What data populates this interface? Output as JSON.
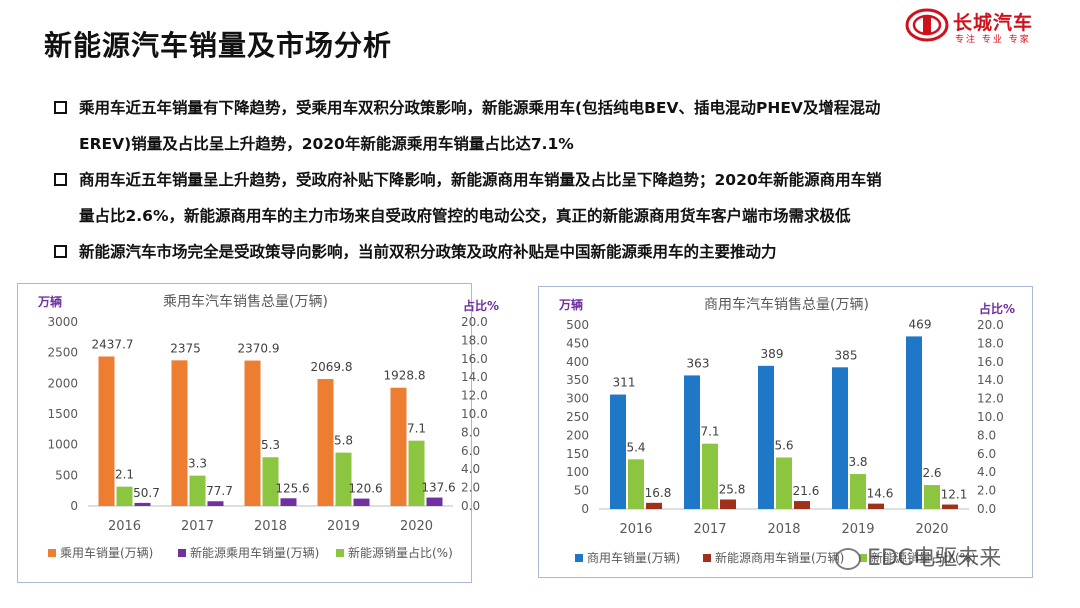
{
  "title": "新能源汽车销量及市场分析",
  "logo": {
    "name": "长城汽车",
    "slogan": "专注 专业 专家"
  },
  "bullets": [
    {
      "line1": "乘用车近五年销量有下降趋势，受乘用车双积分政策影响，新能源乘用车(包括纯电BEV、插电混动PHEV及增程混动",
      "line2": "EREV)销量及占比呈上升趋势，2020年新能源乘用车销量占比达7.1%"
    },
    {
      "line1": "商用车近五年销量呈上升趋势，受政府补贴下降影响，新能源商用车销量及占比呈下降趋势；2020年新能源商用车销",
      "line2": "量占比2.6%，新能源商用车的主力市场来自受政府管控的电动公交，真正的新能源商用货车客户端市场需求极低"
    },
    {
      "line1": "新能源汽车市场完全是受政策导向影响，当前双积分政策及政府补贴是中国新能源乘用车的主要推动力",
      "line2": ""
    }
  ],
  "watermark": "EDC电驱未来",
  "colors": {
    "orange": "#ed7d31",
    "purple": "#7030a0",
    "green": "#8cc540",
    "blue": "#1f77c8",
    "darkred": "#a0301a",
    "axis": "#595959"
  },
  "chart_data": [
    {
      "type": "bar",
      "title": "乘用车汽车销售总量(万辆)",
      "left_axis_label": "万辆",
      "right_axis_label": "占比%",
      "categories": [
        "2016",
        "2017",
        "2018",
        "2019",
        "2020"
      ],
      "ylim_left": [
        0,
        3000
      ],
      "ylim_right": [
        0,
        20
      ],
      "left_ticks": [
        "0",
        "500",
        "1000",
        "1500",
        "2000",
        "2500",
        "3000"
      ],
      "right_ticks": [
        "0.0",
        "2.0",
        "4.0",
        "6.0",
        "8.0",
        "10.0",
        "12.0",
        "14.0",
        "16.0",
        "18.0",
        "20.0"
      ],
      "series": [
        {
          "name": "乘用车销量(万辆)",
          "axis": "left",
          "color": "#ed7d31",
          "values": [
            2437.7,
            2375,
            2370.9,
            2069.8,
            1928.8
          ],
          "labels": [
            "2437.7",
            "2375",
            "2370.9",
            "2069.8",
            "1928.8"
          ]
        },
        {
          "name": "新能源乘用车销量(万辆)",
          "axis": "left",
          "color": "#7030a0",
          "values": [
            50.7,
            77.7,
            125.6,
            120.6,
            137.6
          ],
          "labels": [
            "50.7",
            "77.7",
            "125.6",
            "120.6",
            "137.6"
          ]
        },
        {
          "name": "新能源销量占比(%)",
          "axis": "right",
          "color": "#8cc540",
          "values": [
            2.1,
            3.3,
            5.3,
            5.8,
            7.1
          ],
          "labels": [
            "2.1",
            "3.3",
            "5.3",
            "5.8",
            "7.1"
          ]
        }
      ],
      "legend": "bottom"
    },
    {
      "type": "bar",
      "title": "商用车汽车销售总量(万辆)",
      "left_axis_label": "万辆",
      "right_axis_label": "占比%",
      "categories": [
        "2016",
        "2017",
        "2018",
        "2019",
        "2020"
      ],
      "ylim_left": [
        0,
        500
      ],
      "ylim_right": [
        0,
        20
      ],
      "left_ticks": [
        "0",
        "50",
        "100",
        "150",
        "200",
        "250",
        "300",
        "350",
        "400",
        "450",
        "500"
      ],
      "right_ticks": [
        "0.0",
        "2.0",
        "4.0",
        "6.0",
        "8.0",
        "10.0",
        "12.0",
        "14.0",
        "16.0",
        "18.0",
        "20.0"
      ],
      "series": [
        {
          "name": "商用车销量(万辆)",
          "axis": "left",
          "color": "#1f77c8",
          "values": [
            311,
            363,
            389,
            385,
            469
          ],
          "labels": [
            "311",
            "363",
            "389",
            "385",
            "469"
          ]
        },
        {
          "name": "新能源商用车销量(万辆)",
          "axis": "left",
          "color": "#a0301a",
          "values": [
            16.8,
            25.8,
            21.6,
            14.6,
            12.1
          ],
          "labels": [
            "16.8",
            "25.8",
            "21.6",
            "14.6",
            "12.1"
          ]
        },
        {
          "name": "新能源销量占比(%)",
          "axis": "right",
          "color": "#8cc540",
          "values": [
            5.4,
            7.1,
            5.6,
            3.8,
            2.6
          ],
          "labels": [
            "5.4",
            "7.1",
            "5.6",
            "3.8",
            "2.6"
          ]
        }
      ],
      "legend": "bottom"
    }
  ]
}
